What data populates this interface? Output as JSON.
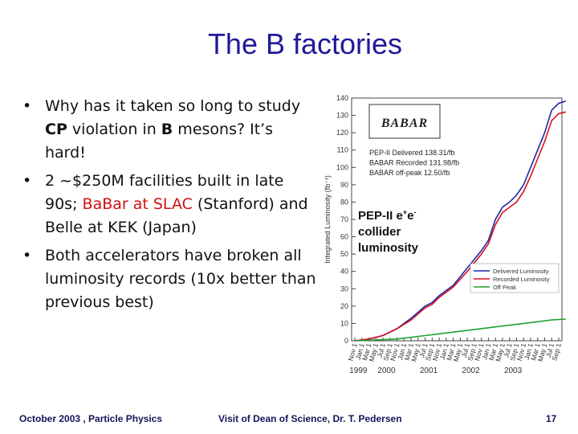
{
  "title": "The B factories",
  "bullets": [
    {
      "t1": "Why has it taken so long to study ",
      "cp": "CP",
      "t2": " violation in ",
      "b": "B",
      "t3": " mesons? It’s hard!"
    },
    {
      "t1": "2 ~$250M facilities built in late 90s; ",
      "red": "BaBar at SLAC",
      "t2": " (Stanford) and Belle at KEK (Japan)"
    },
    {
      "t1": "Both accelerators have broken all luminosity records (10x better than previous best)"
    }
  ],
  "footer": {
    "left": "October 2003 , Particle Physics",
    "center": "Visit of Dean of Science, Dr. T. Pedersen",
    "page": "17"
  },
  "annotation": {
    "line1": "PEP-II e",
    "sup1": "+",
    "mid": "e",
    "sup2": "-",
    "line2": "collider",
    "line3": "luminosity"
  },
  "chart_data": {
    "type": "line",
    "ylabel": "Integrated Luminosity (fb⁻¹)",
    "ylim": [
      0,
      140
    ],
    "yticks": [
      0,
      10,
      20,
      30,
      40,
      50,
      60,
      70,
      80,
      90,
      100,
      110,
      120,
      130,
      140
    ],
    "logo": "BABAR",
    "legend_box": [
      "PEP-II Delivered   138.31/fb",
      "BABAR Recorded   131.98/fb",
      "BABAR off-peak   12.50/fb"
    ],
    "legend_lines": [
      "Delivered Luminosity",
      "Recorded Luminosity",
      "Off Peak"
    ],
    "x_months": [
      "Nov 1",
      "Jan 1",
      "Mar 1",
      "May 1",
      "Jul 1",
      "Sep 1",
      "Nov 1",
      "Jan 1",
      "Mar 1",
      "May 1",
      "Jul 1",
      "Sep 1",
      "Nov 1",
      "Jan 1",
      "Mar 1",
      "May 1",
      "Jul 1",
      "Sep 1",
      "Nov 1",
      "Jan 1",
      "Mar 1",
      "May 1",
      "Jul 1",
      "Sep 1",
      "Nov 1",
      "Jan 1",
      "Mar 1",
      "May 1",
      "Jul 1",
      "Sep 1"
    ],
    "x_years": [
      {
        "label": "1999",
        "month_index": 0.5
      },
      {
        "label": "2000",
        "month_index": 4.5
      },
      {
        "label": "2001",
        "month_index": 10.5
      },
      {
        "label": "2002",
        "month_index": 16.5
      },
      {
        "label": "2003",
        "month_index": 22.5
      }
    ],
    "series": [
      {
        "name": "Delivered Luminosity",
        "color": "#1a2aa8",
        "points": [
          [
            0,
            0
          ],
          [
            2,
            1
          ],
          [
            4,
            3
          ],
          [
            6,
            7
          ],
          [
            8,
            13
          ],
          [
            10,
            20
          ],
          [
            11,
            22
          ],
          [
            12,
            26
          ],
          [
            14,
            32
          ],
          [
            16,
            42
          ],
          [
            17,
            47
          ],
          [
            18,
            52
          ],
          [
            19,
            58
          ],
          [
            20,
            70
          ],
          [
            21,
            77
          ],
          [
            22,
            80
          ],
          [
            23,
            84
          ],
          [
            24,
            90
          ],
          [
            25,
            100
          ],
          [
            26,
            110
          ],
          [
            27,
            120
          ],
          [
            28,
            133
          ],
          [
            29,
            137
          ],
          [
            30,
            138.3
          ]
        ]
      },
      {
        "name": "Recorded Luminosity",
        "color": "#d81020",
        "points": [
          [
            0,
            0
          ],
          [
            2,
            1
          ],
          [
            4,
            3
          ],
          [
            6,
            7
          ],
          [
            8,
            12
          ],
          [
            10,
            19
          ],
          [
            11,
            21
          ],
          [
            12,
            25
          ],
          [
            14,
            31
          ],
          [
            16,
            40
          ],
          [
            17,
            45
          ],
          [
            18,
            50
          ],
          [
            19,
            56
          ],
          [
            20,
            67
          ],
          [
            21,
            74
          ],
          [
            22,
            77
          ],
          [
            23,
            80
          ],
          [
            24,
            86
          ],
          [
            25,
            95
          ],
          [
            26,
            105
          ],
          [
            27,
            115
          ],
          [
            28,
            127
          ],
          [
            29,
            131
          ],
          [
            30,
            132
          ]
        ]
      },
      {
        "name": "Off Peak",
        "color": "#22a030",
        "points": [
          [
            0,
            0
          ],
          [
            3,
            0.5
          ],
          [
            6,
            1
          ],
          [
            8,
            2
          ],
          [
            10,
            3
          ],
          [
            12,
            4
          ],
          [
            14,
            5
          ],
          [
            16,
            6
          ],
          [
            18,
            7
          ],
          [
            20,
            8
          ],
          [
            22,
            9
          ],
          [
            24,
            10
          ],
          [
            26,
            11
          ],
          [
            28,
            12
          ],
          [
            30,
            12.5
          ]
        ]
      }
    ]
  }
}
